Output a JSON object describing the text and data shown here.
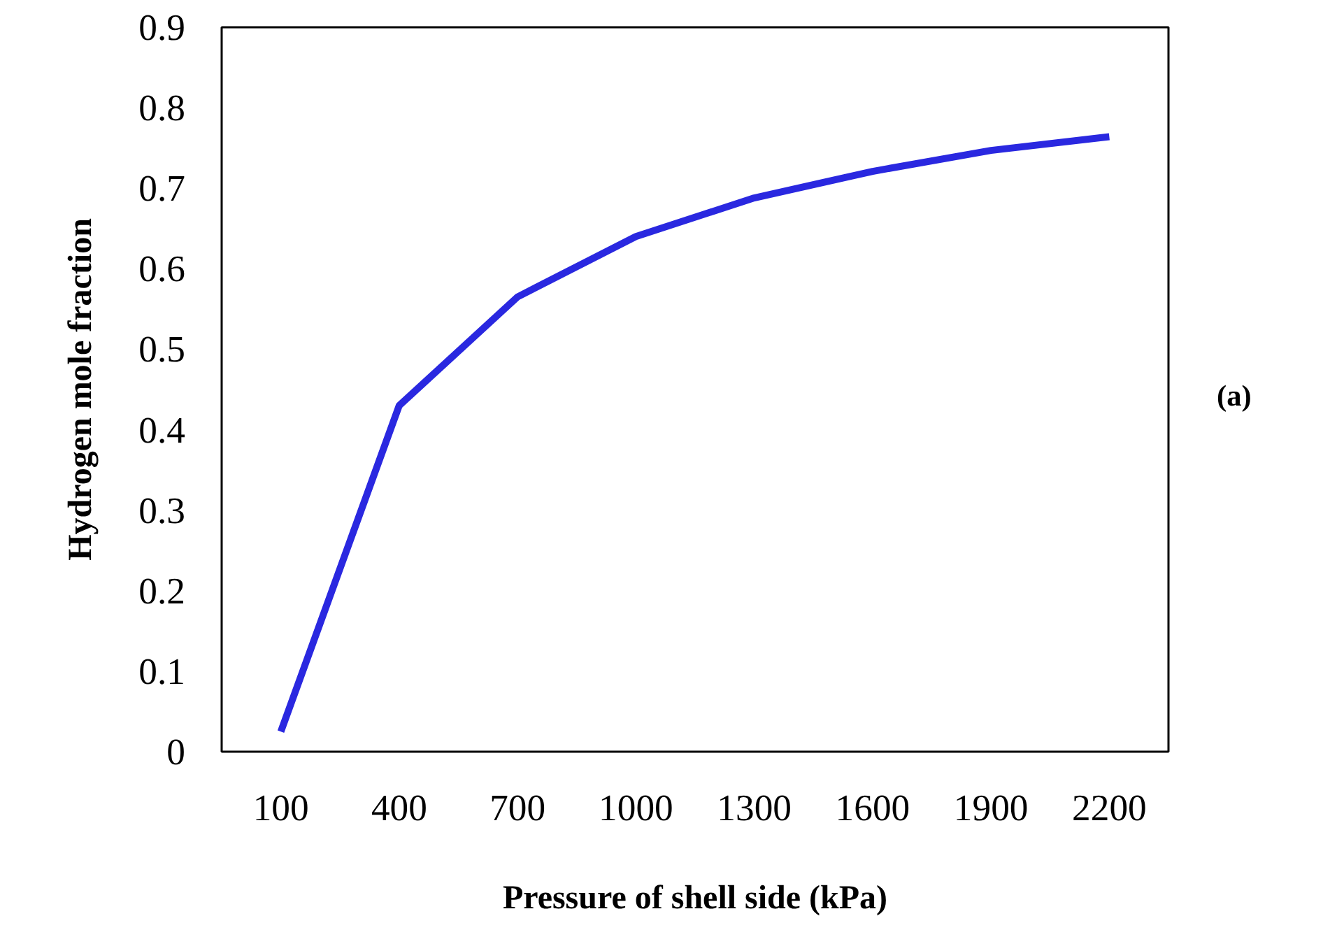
{
  "chart_data": {
    "type": "line",
    "xlabel": "Pressure of shell side (kPa)",
    "ylabel": "Hydrogen mole fraction",
    "categories": [
      "100",
      "400",
      "700",
      "1000",
      "1300",
      "1600",
      "1900",
      "2200"
    ],
    "series": [
      {
        "color": "#2a28e0",
        "values": [
          0.025,
          0.43,
          0.565,
          0.64,
          0.688,
          0.721,
          0.747,
          0.764
        ]
      }
    ],
    "ylim": [
      0,
      0.9
    ],
    "yticks": [
      0,
      0.1,
      0.2,
      0.3,
      0.4,
      0.5,
      0.6,
      0.7,
      0.8,
      0.9
    ],
    "grid": false,
    "marker": "none",
    "line_style": "solid",
    "annotations": [
      "(a)"
    ]
  }
}
